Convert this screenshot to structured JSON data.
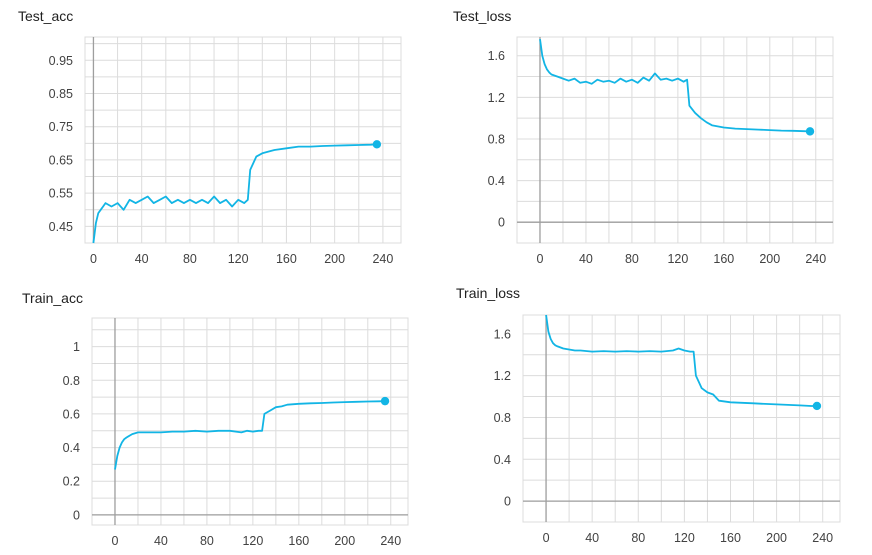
{
  "colors": {
    "series": "#12b5e5",
    "grid": "#dcdcdc",
    "axis": "#9e9e9e",
    "text": "#424242"
  },
  "chart_data": [
    {
      "type": "line",
      "title": "Test_acc",
      "xticks": [
        0,
        40,
        80,
        120,
        160,
        200,
        240
      ],
      "yticks": [
        0.45,
        0.55,
        0.65,
        0.75,
        0.85,
        0.95
      ],
      "xlim": [
        -7,
        255
      ],
      "ylim": [
        0.4,
        1.02
      ],
      "grid": true,
      "series": [
        {
          "x": [
            0,
            2,
            4,
            6,
            8,
            10,
            15,
            20,
            25,
            30,
            35,
            40,
            45,
            50,
            55,
            60,
            65,
            70,
            75,
            80,
            85,
            90,
            95,
            100,
            105,
            110,
            115,
            120,
            125,
            128,
            130,
            135,
            140,
            145,
            150,
            160,
            170,
            180,
            190,
            200,
            210,
            220,
            230,
            235
          ],
          "y": [
            0.4,
            0.46,
            0.49,
            0.5,
            0.51,
            0.52,
            0.51,
            0.52,
            0.5,
            0.53,
            0.52,
            0.53,
            0.54,
            0.52,
            0.53,
            0.54,
            0.52,
            0.53,
            0.52,
            0.53,
            0.52,
            0.53,
            0.52,
            0.54,
            0.52,
            0.53,
            0.51,
            0.53,
            0.52,
            0.53,
            0.62,
            0.66,
            0.67,
            0.675,
            0.68,
            0.685,
            0.69,
            0.69,
            0.692,
            0.693,
            0.694,
            0.695,
            0.696,
            0.697
          ]
        }
      ]
    },
    {
      "type": "line",
      "title": "Test_loss",
      "xticks": [
        0,
        40,
        80,
        120,
        160,
        200,
        240
      ],
      "yticks": [
        0,
        0.4,
        0.8,
        1.2,
        1.6
      ],
      "xlim": [
        -20,
        255
      ],
      "ylim": [
        -0.2,
        1.78
      ],
      "grid": true,
      "series": [
        {
          "x": [
            0,
            2,
            4,
            6,
            8,
            10,
            15,
            20,
            25,
            30,
            35,
            40,
            45,
            50,
            55,
            60,
            65,
            70,
            75,
            80,
            85,
            90,
            95,
            100,
            105,
            110,
            115,
            120,
            125,
            128,
            130,
            135,
            140,
            145,
            150,
            160,
            170,
            180,
            190,
            200,
            210,
            220,
            230,
            235
          ],
          "y": [
            1.76,
            1.6,
            1.52,
            1.47,
            1.44,
            1.42,
            1.4,
            1.38,
            1.36,
            1.38,
            1.34,
            1.35,
            1.33,
            1.37,
            1.35,
            1.36,
            1.34,
            1.38,
            1.35,
            1.37,
            1.34,
            1.39,
            1.36,
            1.43,
            1.37,
            1.38,
            1.36,
            1.38,
            1.35,
            1.37,
            1.12,
            1.05,
            1.0,
            0.96,
            0.93,
            0.91,
            0.9,
            0.895,
            0.89,
            0.885,
            0.88,
            0.878,
            0.875,
            0.873
          ]
        }
      ]
    },
    {
      "type": "line",
      "title": "Train_acc",
      "xticks": [
        0,
        40,
        80,
        120,
        160,
        200,
        240
      ],
      "yticks": [
        0,
        0.2,
        0.4,
        0.6,
        0.8,
        1
      ],
      "xlim": [
        -20,
        255
      ],
      "ylim": [
        -0.06,
        1.17
      ],
      "grid": true,
      "series": [
        {
          "x": [
            0,
            2,
            4,
            6,
            8,
            10,
            15,
            20,
            25,
            30,
            40,
            50,
            60,
            70,
            80,
            90,
            100,
            110,
            115,
            120,
            125,
            128,
            130,
            135,
            140,
            145,
            150,
            160,
            170,
            180,
            190,
            200,
            210,
            220,
            230,
            235
          ],
          "y": [
            0.27,
            0.35,
            0.4,
            0.43,
            0.45,
            0.46,
            0.48,
            0.49,
            0.49,
            0.49,
            0.49,
            0.495,
            0.495,
            0.5,
            0.495,
            0.5,
            0.5,
            0.49,
            0.5,
            0.495,
            0.5,
            0.5,
            0.6,
            0.62,
            0.64,
            0.645,
            0.655,
            0.66,
            0.663,
            0.665,
            0.668,
            0.67,
            0.672,
            0.674,
            0.675,
            0.676
          ]
        }
      ]
    },
    {
      "type": "line",
      "title": "Train_loss",
      "xticks": [
        0,
        40,
        80,
        120,
        160,
        200,
        240
      ],
      "yticks": [
        0,
        0.4,
        0.8,
        1.2,
        1.6
      ],
      "xlim": [
        -20,
        255
      ],
      "ylim": [
        -0.2,
        1.78
      ],
      "grid": true,
      "series": [
        {
          "x": [
            0,
            2,
            4,
            6,
            8,
            10,
            15,
            20,
            25,
            30,
            40,
            50,
            60,
            70,
            80,
            90,
            100,
            110,
            115,
            120,
            125,
            128,
            130,
            135,
            140,
            145,
            150,
            160,
            170,
            180,
            190,
            200,
            210,
            220,
            230,
            235
          ],
          "y": [
            1.78,
            1.62,
            1.55,
            1.51,
            1.49,
            1.48,
            1.46,
            1.45,
            1.44,
            1.44,
            1.43,
            1.435,
            1.43,
            1.435,
            1.43,
            1.435,
            1.43,
            1.44,
            1.46,
            1.44,
            1.43,
            1.43,
            1.2,
            1.08,
            1.04,
            1.02,
            0.96,
            0.945,
            0.94,
            0.935,
            0.93,
            0.925,
            0.92,
            0.915,
            0.91,
            0.91
          ]
        }
      ]
    }
  ]
}
